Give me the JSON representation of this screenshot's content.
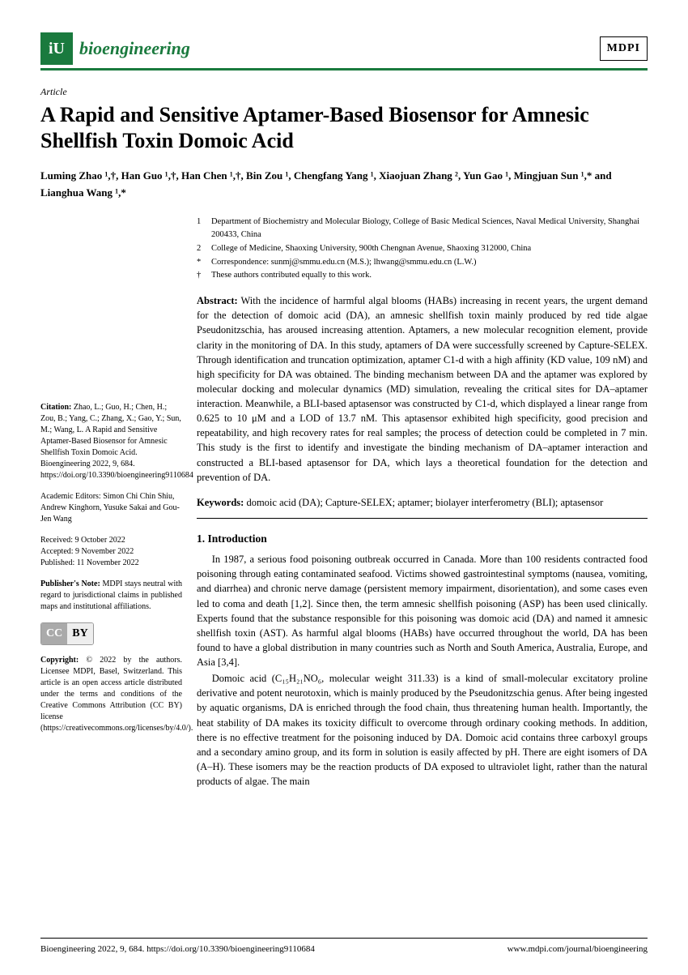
{
  "header": {
    "journal": "bioengineering",
    "logo_text": "iU",
    "publisher": "MDPI",
    "brand_color": "#1a7a3e"
  },
  "meta": {
    "article_type": "Article",
    "title": "A Rapid and Sensitive Aptamer-Based Biosensor for Amnesic Shellfish Toxin Domoic Acid",
    "authors_html": "Luming Zhao ¹,†, Han Guo ¹,†, Han Chen ¹,†, Bin Zou ¹, Chengfang Yang ¹, Xiaojuan Zhang ², Yun Gao ¹, Mingjuan Sun ¹,* and Lianghua Wang ¹,*"
  },
  "affiliations": [
    {
      "marker": "1",
      "text": "Department of Biochemistry and Molecular Biology, College of Basic Medical Sciences, Naval Medical University, Shanghai 200433, China"
    },
    {
      "marker": "2",
      "text": "College of Medicine, Shaoxing University, 900th Chengnan Avenue, Shaoxing 312000, China"
    },
    {
      "marker": "*",
      "text": "Correspondence: sunmj@smmu.edu.cn (M.S.); lhwang@smmu.edu.cn (L.W.)"
    },
    {
      "marker": "†",
      "text": "These authors contributed equally to this work."
    }
  ],
  "abstract": {
    "label": "Abstract:",
    "text": "With the incidence of harmful algal blooms (HABs) increasing in recent years, the urgent demand for the detection of domoic acid (DA), an amnesic shellfish toxin mainly produced by red tide algae Pseudonitzschia, has aroused increasing attention. Aptamers, a new molecular recognition element, provide clarity in the monitoring of DA. In this study, aptamers of DA were successfully screened by Capture-SELEX. Through identification and truncation optimization, aptamer C1-d with a high affinity (KD value, 109 nM) and high specificity for DA was obtained. The binding mechanism between DA and the aptamer was explored by molecular docking and molecular dynamics (MD) simulation, revealing the critical sites for DA–aptamer interaction. Meanwhile, a BLI-based aptasensor was constructed by C1-d, which displayed a linear range from 0.625 to 10 μM and a LOD of 13.7 nM. This aptasensor exhibited high specificity, good precision and repeatability, and high recovery rates for real samples; the process of detection could be completed in 7 min. This study is the first to identify and investigate the binding mechanism of DA–aptamer interaction and constructed a BLI-based aptasensor for DA, which lays a theoretical foundation for the detection and prevention of DA."
  },
  "keywords": {
    "label": "Keywords:",
    "text": "domoic acid (DA); Capture-SELEX; aptamer; biolayer interferometry (BLI); aptasensor"
  },
  "sidebar": {
    "citation_label": "Citation:",
    "citation": "Zhao, L.; Guo, H.; Chen, H.; Zou, B.; Yang, C.; Zhang, X.; Gao, Y.; Sun, M.; Wang, L. A Rapid and Sensitive Aptamer-Based Biosensor for Amnesic Shellfish Toxin Domoic Acid. Bioengineering 2022, 9, 684. https://doi.org/10.3390/bioengineering9110684",
    "editors_label": "Academic Editors:",
    "editors": "Simon Chi Chin Shiu, Andrew Kinghorn, Yusuke Sakai and Gou-Jen Wang",
    "received": "Received: 9 October 2022",
    "accepted": "Accepted: 9 November 2022",
    "published": "Published: 11 November 2022",
    "note_label": "Publisher's Note:",
    "note": "MDPI stays neutral with regard to jurisdictional claims in published maps and institutional affiliations.",
    "copyright_label": "Copyright:",
    "copyright": "© 2022 by the authors. Licensee MDPI, Basel, Switzerland. This article is an open access article distributed under the terms and conditions of the Creative Commons Attribution (CC BY) license (https://creativecommons.org/licenses/by/4.0/)."
  },
  "body": {
    "section_heading": "1. Introduction",
    "para1": "In 1987, a serious food poisoning outbreak occurred in Canada. More than 100 residents contracted food poisoning through eating contaminated seafood. Victims showed gastrointestinal symptoms (nausea, vomiting, and diarrhea) and chronic nerve damage (persistent memory impairment, disorientation), and some cases even led to coma and death [1,2]. Since then, the term amnesic shellfish poisoning (ASP) has been used clinically. Experts found that the substance responsible for this poisoning was domoic acid (DA) and named it amnesic shellfish toxin (AST). As harmful algal blooms (HABs) have occurred throughout the world, DA has been found to have a global distribution in many countries such as North and South America, Australia, Europe, and Asia [3,4].",
    "para2": "Domoic acid (C₁₅H₂₁NO₆, molecular weight 311.33) is a kind of small-molecular excitatory proline derivative and potent neurotoxin, which is mainly produced by the Pseudonitzschia genus. After being ingested by aquatic organisms, DA is enriched through the food chain, thus threatening human health. Importantly, the heat stability of DA makes its toxicity difficult to overcome through ordinary cooking methods. In addition, there is no effective treatment for the poisoning induced by DA. Domoic acid contains three carboxyl groups and a secondary amino group, and its form in solution is easily affected by pH. There are eight isomers of DA (A–H). These isomers may be the reaction products of DA exposed to ultraviolet light, rather than the natural products of algae. The main"
  },
  "footer": {
    "left": "Bioengineering 2022, 9, 684. https://doi.org/10.3390/bioengineering9110684",
    "right": "www.mdpi.com/journal/bioengineering"
  }
}
